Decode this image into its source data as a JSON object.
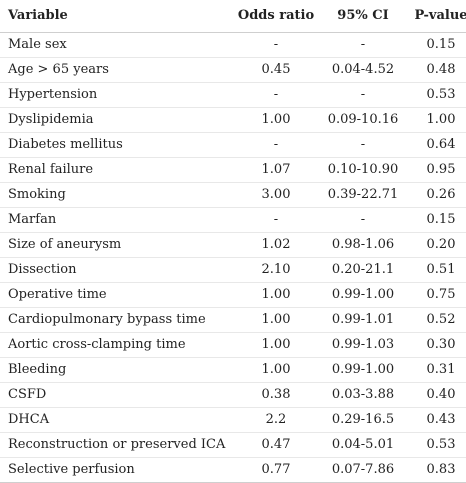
{
  "table": {
    "headers": {
      "variable": "Variable",
      "odds_ratio": "Odds ratio",
      "ci": "95% CI",
      "p_value": "P-value"
    },
    "rows": [
      {
        "variable": "Male sex",
        "odds_ratio": "-",
        "ci": "-",
        "p_value": "0.15"
      },
      {
        "variable": "Age > 65 years",
        "odds_ratio": "0.45",
        "ci": "0.04-4.52",
        "p_value": "0.48"
      },
      {
        "variable": "Hypertension",
        "odds_ratio": "-",
        "ci": "-",
        "p_value": "0.53"
      },
      {
        "variable": "Dyslipidemia",
        "odds_ratio": "1.00",
        "ci": "0.09-10.16",
        "p_value": "1.00"
      },
      {
        "variable": "Diabetes mellitus",
        "odds_ratio": "-",
        "ci": "-",
        "p_value": "0.64"
      },
      {
        "variable": "Renal failure",
        "odds_ratio": "1.07",
        "ci": "0.10-10.90",
        "p_value": "0.95"
      },
      {
        "variable": "Smoking",
        "odds_ratio": "3.00",
        "ci": "0.39-22.71",
        "p_value": "0.26"
      },
      {
        "variable": "Marfan",
        "odds_ratio": "-",
        "ci": "-",
        "p_value": "0.15"
      },
      {
        "variable": "Size of aneurysm",
        "odds_ratio": "1.02",
        "ci": "0.98-1.06",
        "p_value": "0.20"
      },
      {
        "variable": "Dissection",
        "odds_ratio": "2.10",
        "ci": "0.20-21.1",
        "p_value": "0.51"
      },
      {
        "variable": "Operative time",
        "odds_ratio": "1.00",
        "ci": "0.99-1.00",
        "p_value": "0.75"
      },
      {
        "variable": "Cardiopulmonary bypass time",
        "odds_ratio": "1.00",
        "ci": "0.99-1.01",
        "p_value": "0.52"
      },
      {
        "variable": "Aortic cross-clamping time",
        "odds_ratio": "1.00",
        "ci": "0.99-1.03",
        "p_value": "0.30"
      },
      {
        "variable": "Bleeding",
        "odds_ratio": "1.00",
        "ci": "0.99-1.00",
        "p_value": "0.31"
      },
      {
        "variable": "CSFD",
        "odds_ratio": "0.38",
        "ci": "0.03-3.88",
        "p_value": "0.40"
      },
      {
        "variable": "DHCA",
        "odds_ratio": "2.2",
        "ci": "0.29-16.5",
        "p_value": "0.43"
      },
      {
        "variable": "Reconstruction or preserved ICA",
        "odds_ratio": "0.47",
        "ci": "0.04-5.01",
        "p_value": "0.53"
      },
      {
        "variable": "Selective perfusion",
        "odds_ratio": "0.77",
        "ci": "0.07-7.86",
        "p_value": "0.83"
      }
    ]
  }
}
